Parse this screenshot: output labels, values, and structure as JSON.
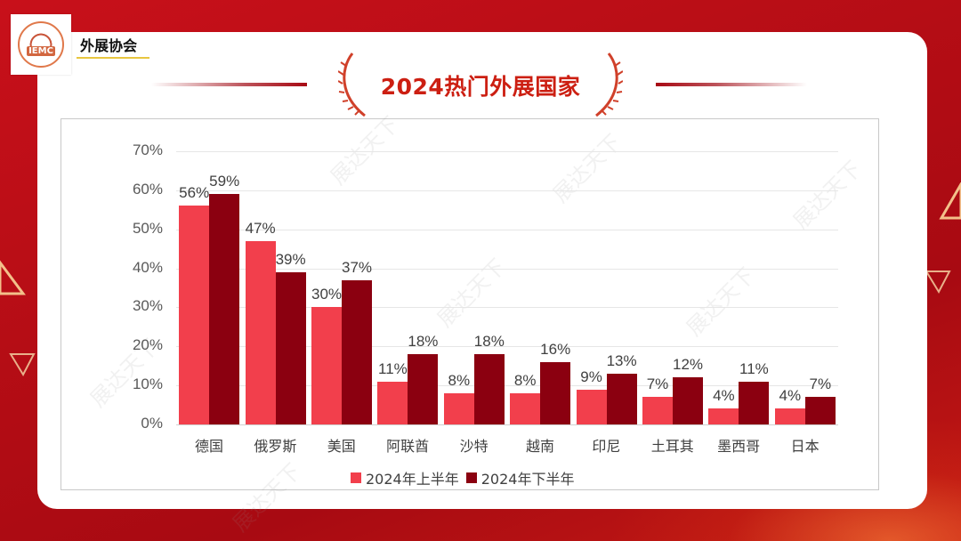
{
  "header": {
    "logo_text": "IEMC",
    "org_name": "外展协会"
  },
  "title": "2024热门外展国家",
  "watermark_text": "展达天下",
  "chart_data": {
    "type": "bar",
    "title": "2024热门外展国家",
    "categories": [
      "德国",
      "俄罗斯",
      "美国",
      "阿联酋",
      "沙特",
      "越南",
      "印尼",
      "土耳其",
      "墨西哥",
      "日本"
    ],
    "series": [
      {
        "name": "2024年上半年",
        "color": "#f23f4c",
        "values": [
          56,
          47,
          30,
          11,
          8,
          8,
          9,
          7,
          4,
          4
        ],
        "labels": [
          "56%",
          "47%",
          "30%",
          "11%",
          "8%",
          "8%",
          "9%",
          "7%",
          "4%",
          "4%"
        ]
      },
      {
        "name": "2024年下半年",
        "color": "#8b0010",
        "values": [
          59,
          39,
          37,
          18,
          18,
          16,
          13,
          12,
          11,
          7
        ],
        "labels": [
          "59%",
          "39%",
          "37%",
          "18%",
          "18%",
          "16%",
          "13%",
          "12%",
          "11%",
          "7%"
        ]
      }
    ],
    "xlabel": "",
    "ylabel": "",
    "ylim": [
      0,
      70
    ],
    "yticks": [
      "0%",
      "10%",
      "20%",
      "30%",
      "40%",
      "50%",
      "60%",
      "70%"
    ],
    "grid": true,
    "legend_position": "bottom"
  }
}
